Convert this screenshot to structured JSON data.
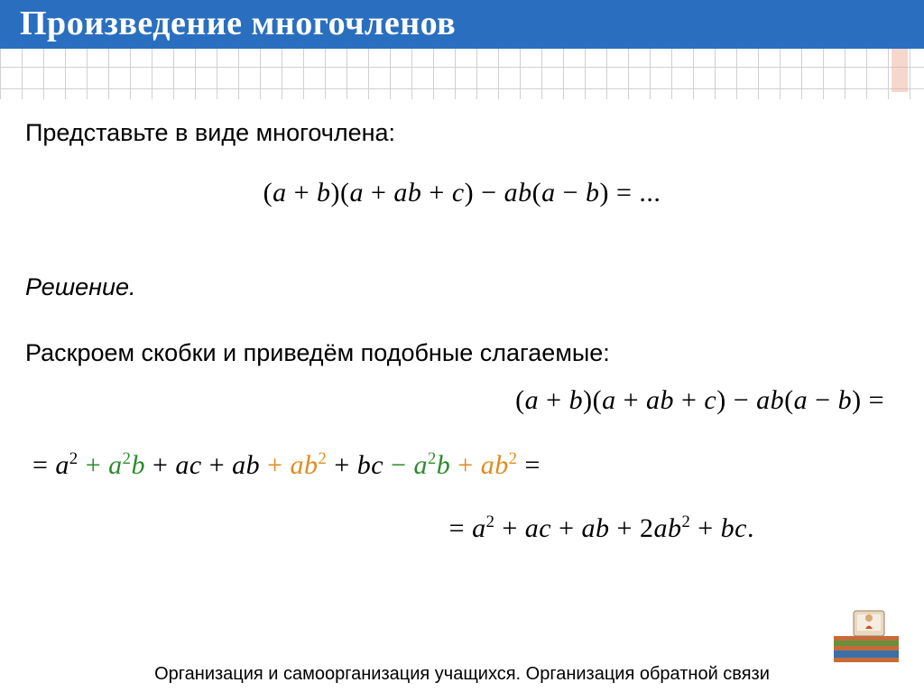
{
  "title": "Произведение многочленов",
  "prompt": "Представьте в виде многочлена:",
  "problem_html": "(<i>a</i> + <i>b</i>)(<i>a</i> + <i>ab</i> + <i>c</i>) − <i>ab</i>(<i>a</i> − <i>b</i>) = ...",
  "solution_label": "Решение.",
  "explain": "Раскроем скобки и приведём подобные слагаемые:",
  "line1_html": "(<i>a</i> + <i>b</i>)(<i>a</i> + <i>ab</i> + <i>c</i>) − <i>ab</i>(<i>a</i> − <i>b</i>) =",
  "line2_terms": [
    {
      "text": "= ",
      "color": "#000"
    },
    {
      "text": "a",
      "sup": "2",
      "color": "#000",
      "italic": true
    },
    {
      "text": " + ",
      "color": "#2a8c2a"
    },
    {
      "text": "a",
      "sup": "2",
      "color": "#2a8c2a",
      "italic": true
    },
    {
      "text": "b",
      "color": "#2a8c2a",
      "italic": true
    },
    {
      "text": " + ",
      "color": "#000"
    },
    {
      "text": "ac",
      "color": "#000",
      "italic": true
    },
    {
      "text": " + ",
      "color": "#000"
    },
    {
      "text": "ab",
      "color": "#000",
      "italic": true
    },
    {
      "text": " + ",
      "color": "#e08a1e"
    },
    {
      "text": "ab",
      "color": "#e08a1e",
      "italic": true
    },
    {
      "text": "",
      "sup": "2",
      "color": "#e08a1e"
    },
    {
      "text": " + ",
      "color": "#000"
    },
    {
      "text": "bc",
      "color": "#000",
      "italic": true
    },
    {
      "text": " − ",
      "color": "#2a8c2a"
    },
    {
      "text": "a",
      "sup": "2",
      "color": "#2a8c2a",
      "italic": true
    },
    {
      "text": "b",
      "color": "#2a8c2a",
      "italic": true
    },
    {
      "text": " + ",
      "color": "#e08a1e"
    },
    {
      "text": "ab",
      "color": "#e08a1e",
      "italic": true
    },
    {
      "text": "",
      "sup": "2",
      "color": "#e08a1e"
    },
    {
      "text": " =",
      "color": "#000"
    }
  ],
  "line3_html": "= <i>a</i><sup>2</sup> + <i>ac</i> + <i>ab</i> + 2<i>ab</i><sup>2</sup> + <i>bc</i>.",
  "footer": "Организация и самоорганизация учащихся. Организация обратной связи",
  "colors": {
    "title_bg": "#2a6fbf",
    "term_green": "#2a8c2a",
    "term_orange": "#e08a1e",
    "grid_line": "#d0d0d0"
  }
}
